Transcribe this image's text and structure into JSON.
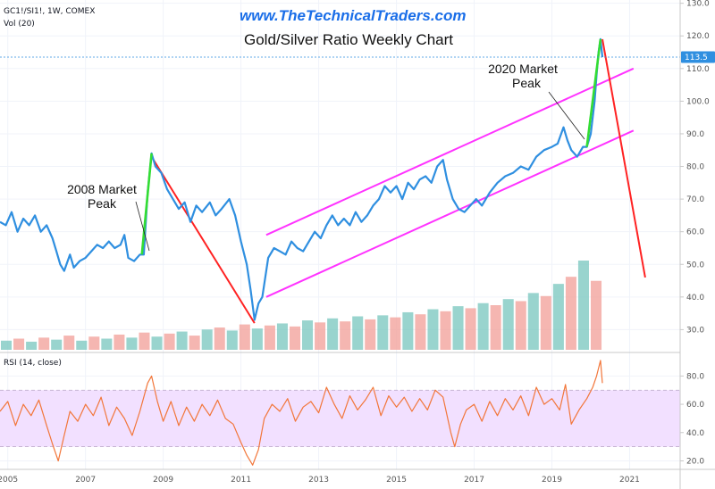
{
  "header": {
    "symbol_line": "GC1!/SI1!, 1W, COMEX",
    "volume_line": "Vol (20)",
    "url": "www.TheTechnicalTraders.com",
    "title": "Gold/Silver Ratio Weekly Chart",
    "rsi_label": "RSI (14, close)"
  },
  "annotations": [
    {
      "id": "2008",
      "lines": [
        "2008 Market",
        "Peak"
      ]
    },
    {
      "id": "2020",
      "lines": [
        "2020 Market",
        "Peak"
      ]
    }
  ],
  "colors": {
    "price": "#2f8fe0",
    "channel": "#ff33ff",
    "down_trend": "#ff2222",
    "up_leg": "#33dd33",
    "rsi_line": "#f2763a",
    "rsi_band": "#f2e0ff",
    "vol_up": "#7fc9c2",
    "vol_down": "#f2a49d",
    "last_price_tag": "#2f8fe0"
  },
  "chart_data": {
    "type": "line",
    "x_axis": {
      "ticks": [
        "2005",
        "2007",
        "2009",
        "2011",
        "2013",
        "2015",
        "2017",
        "2019",
        "2021"
      ],
      "range": [
        2004.8,
        2022.3
      ]
    },
    "price_panel": {
      "y_ticks": [
        30.0,
        40.0,
        50.0,
        60.0,
        70.0,
        80.0,
        90.0,
        100.0,
        110.0,
        120.0,
        130.0
      ],
      "ylim": [
        23,
        131
      ],
      "last_price": 113.5,
      "grid": true,
      "series": [
        {
          "values": [
            [
              2004.8,
              63
            ],
            [
              2004.95,
              62
            ],
            [
              2005.1,
              66
            ],
            [
              2005.25,
              60
            ],
            [
              2005.4,
              64
            ],
            [
              2005.55,
              62
            ],
            [
              2005.7,
              65
            ],
            [
              2005.85,
              60
            ],
            [
              2006.0,
              62
            ],
            [
              2006.15,
              58
            ],
            [
              2006.25,
              54
            ],
            [
              2006.35,
              50
            ],
            [
              2006.45,
              48
            ],
            [
              2006.6,
              53
            ],
            [
              2006.7,
              49
            ],
            [
              2006.85,
              51
            ],
            [
              2007.0,
              52
            ],
            [
              2007.15,
              54
            ],
            [
              2007.3,
              56
            ],
            [
              2007.45,
              55
            ],
            [
              2007.6,
              57
            ],
            [
              2007.75,
              55
            ],
            [
              2007.9,
              56
            ],
            [
              2008.0,
              59
            ],
            [
              2008.1,
              52
            ],
            [
              2008.25,
              51
            ],
            [
              2008.4,
              53
            ],
            [
              2008.5,
              53
            ],
            [
              2008.6,
              72
            ],
            [
              2008.7,
              84
            ],
            [
              2008.8,
              80
            ],
            [
              2008.95,
              78
            ],
            [
              2009.1,
              73
            ],
            [
              2009.25,
              70
            ],
            [
              2009.4,
              67
            ],
            [
              2009.55,
              69
            ],
            [
              2009.7,
              63
            ],
            [
              2009.85,
              68
            ],
            [
              2010.0,
              66
            ],
            [
              2010.2,
              69
            ],
            [
              2010.35,
              65
            ],
            [
              2010.5,
              67
            ],
            [
              2010.7,
              70
            ],
            [
              2010.85,
              65
            ],
            [
              2011.0,
              57
            ],
            [
              2011.15,
              50
            ],
            [
              2011.25,
              42
            ],
            [
              2011.35,
              33
            ],
            [
              2011.45,
              38
            ],
            [
              2011.55,
              40
            ],
            [
              2011.7,
              52
            ],
            [
              2011.85,
              55
            ],
            [
              2012.0,
              54
            ],
            [
              2012.15,
              53
            ],
            [
              2012.3,
              57
            ],
            [
              2012.45,
              55
            ],
            [
              2012.6,
              54
            ],
            [
              2012.75,
              57
            ],
            [
              2012.9,
              60
            ],
            [
              2013.05,
              58
            ],
            [
              2013.2,
              62
            ],
            [
              2013.35,
              65
            ],
            [
              2013.5,
              62
            ],
            [
              2013.65,
              64
            ],
            [
              2013.8,
              62
            ],
            [
              2013.95,
              66
            ],
            [
              2014.1,
              63
            ],
            [
              2014.25,
              65
            ],
            [
              2014.4,
              68
            ],
            [
              2014.55,
              70
            ],
            [
              2014.7,
              74
            ],
            [
              2014.85,
              72
            ],
            [
              2015.0,
              74
            ],
            [
              2015.15,
              70
            ],
            [
              2015.3,
              75
            ],
            [
              2015.45,
              73
            ],
            [
              2015.6,
              76
            ],
            [
              2015.75,
              77
            ],
            [
              2015.9,
              75
            ],
            [
              2016.05,
              80
            ],
            [
              2016.2,
              82
            ],
            [
              2016.3,
              76
            ],
            [
              2016.45,
              70
            ],
            [
              2016.6,
              67
            ],
            [
              2016.75,
              66
            ],
            [
              2016.9,
              68
            ],
            [
              2017.05,
              70
            ],
            [
              2017.2,
              68
            ],
            [
              2017.4,
              72
            ],
            [
              2017.6,
              75
            ],
            [
              2017.8,
              77
            ],
            [
              2018.0,
              78
            ],
            [
              2018.2,
              80
            ],
            [
              2018.4,
              79
            ],
            [
              2018.6,
              83
            ],
            [
              2018.8,
              85
            ],
            [
              2019.0,
              86
            ],
            [
              2019.15,
              87
            ],
            [
              2019.3,
              92
            ],
            [
              2019.4,
              88
            ],
            [
              2019.5,
              85
            ],
            [
              2019.65,
              83
            ],
            [
              2019.8,
              86
            ],
            [
              2019.9,
              86
            ],
            [
              2020.0,
              90
            ],
            [
              2020.1,
              100
            ],
            [
              2020.15,
              108
            ],
            [
              2020.2,
              115
            ],
            [
              2020.25,
              119
            ],
            [
              2020.3,
              113.5
            ]
          ]
        }
      ],
      "trend_lines": [
        {
          "name": "channel-upper",
          "points": [
            [
              2011.65,
              59
            ],
            [
              2021.1,
              110
            ]
          ]
        },
        {
          "name": "channel-lower",
          "points": [
            [
              2011.65,
              40
            ],
            [
              2021.1,
              91
            ]
          ]
        },
        {
          "name": "decline-2008-2011",
          "points": [
            [
              2008.7,
              83
            ],
            [
              2011.35,
              32
            ]
          ]
        },
        {
          "name": "projection-2020",
          "points": [
            [
              2020.3,
              119
            ],
            [
              2021.4,
              46
            ]
          ]
        },
        {
          "name": "rally-2008",
          "points": [
            [
              2008.45,
              53
            ],
            [
              2008.7,
              84
            ]
          ]
        },
        {
          "name": "rally-2020",
          "points": [
            [
              2019.9,
              86
            ],
            [
              2020.25,
              119
            ]
          ]
        }
      ]
    },
    "volume_panel": {
      "values": [
        0.9,
        1.1,
        0.8,
        1.2,
        1.0,
        1.4,
        0.9,
        1.3,
        1.1,
        1.5,
        1.2,
        1.7,
        1.3,
        1.6,
        1.8,
        1.4,
        2.0,
        2.2,
        1.9,
        2.5,
        2.1,
        2.4,
        2.6,
        2.3,
        2.9,
        2.7,
        3.1,
        2.8,
        3.3,
        3.0,
        3.4,
        3.2,
        3.7,
        3.5,
        4.0,
        3.8,
        4.3,
        4.1,
        4.6,
        4.4,
        5.0,
        4.8,
        5.6,
        5.3,
        6.5,
        7.2,
        8.8,
        6.8
      ]
    },
    "rsi_panel": {
      "y_ticks": [
        20.0,
        40.0,
        60.0,
        80.0
      ],
      "ylim": [
        14,
        96
      ],
      "band": [
        30,
        70
      ],
      "values": [
        [
          2004.8,
          55
        ],
        [
          2005.0,
          62
        ],
        [
          2005.2,
          45
        ],
        [
          2005.4,
          60
        ],
        [
          2005.6,
          52
        ],
        [
          2005.8,
          63
        ],
        [
          2006.0,
          45
        ],
        [
          2006.15,
          32
        ],
        [
          2006.3,
          20
        ],
        [
          2006.45,
          38
        ],
        [
          2006.6,
          55
        ],
        [
          2006.8,
          48
        ],
        [
          2007.0,
          60
        ],
        [
          2007.2,
          52
        ],
        [
          2007.4,
          65
        ],
        [
          2007.6,
          45
        ],
        [
          2007.8,
          58
        ],
        [
          2008.0,
          50
        ],
        [
          2008.2,
          38
        ],
        [
          2008.4,
          55
        ],
        [
          2008.6,
          75
        ],
        [
          2008.7,
          80
        ],
        [
          2008.85,
          62
        ],
        [
          2009.0,
          48
        ],
        [
          2009.2,
          62
        ],
        [
          2009.4,
          45
        ],
        [
          2009.6,
          58
        ],
        [
          2009.8,
          48
        ],
        [
          2010.0,
          60
        ],
        [
          2010.2,
          52
        ],
        [
          2010.4,
          63
        ],
        [
          2010.6,
          50
        ],
        [
          2010.8,
          46
        ],
        [
          2011.0,
          33
        ],
        [
          2011.15,
          24
        ],
        [
          2011.3,
          17
        ],
        [
          2011.45,
          28
        ],
        [
          2011.6,
          50
        ],
        [
          2011.8,
          60
        ],
        [
          2012.0,
          55
        ],
        [
          2012.2,
          64
        ],
        [
          2012.4,
          48
        ],
        [
          2012.6,
          58
        ],
        [
          2012.8,
          62
        ],
        [
          2013.0,
          54
        ],
        [
          2013.2,
          72
        ],
        [
          2013.4,
          60
        ],
        [
          2013.6,
          50
        ],
        [
          2013.8,
          66
        ],
        [
          2014.0,
          56
        ],
        [
          2014.2,
          63
        ],
        [
          2014.4,
          72
        ],
        [
          2014.6,
          52
        ],
        [
          2014.8,
          66
        ],
        [
          2015.0,
          58
        ],
        [
          2015.2,
          65
        ],
        [
          2015.4,
          55
        ],
        [
          2015.6,
          64
        ],
        [
          2015.8,
          56
        ],
        [
          2016.0,
          70
        ],
        [
          2016.2,
          65
        ],
        [
          2016.4,
          40
        ],
        [
          2016.5,
          30
        ],
        [
          2016.65,
          46
        ],
        [
          2016.8,
          56
        ],
        [
          2017.0,
          60
        ],
        [
          2017.2,
          48
        ],
        [
          2017.4,
          62
        ],
        [
          2017.6,
          52
        ],
        [
          2017.8,
          64
        ],
        [
          2018.0,
          56
        ],
        [
          2018.2,
          66
        ],
        [
          2018.4,
          52
        ],
        [
          2018.6,
          72
        ],
        [
          2018.8,
          60
        ],
        [
          2019.0,
          64
        ],
        [
          2019.2,
          56
        ],
        [
          2019.35,
          74
        ],
        [
          2019.5,
          46
        ],
        [
          2019.7,
          56
        ],
        [
          2019.9,
          64
        ],
        [
          2020.05,
          72
        ],
        [
          2020.15,
          80
        ],
        [
          2020.25,
          91
        ],
        [
          2020.3,
          75
        ]
      ]
    }
  }
}
